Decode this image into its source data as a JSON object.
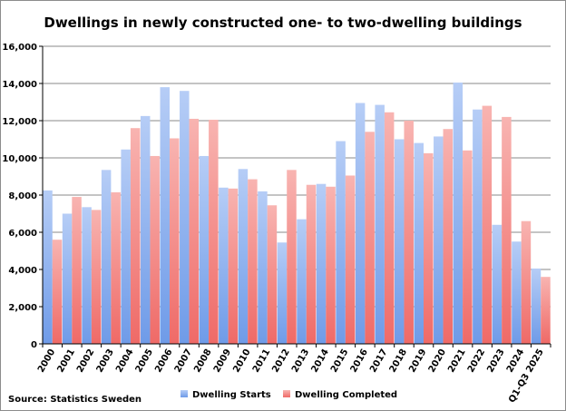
{
  "chart_data": {
    "type": "bar",
    "title": "Dwellings in newly constructed one- to two-dwelling buildings",
    "source": "Source: Statistics Sweden",
    "categories": [
      "2000",
      "2001",
      "2002",
      "2003",
      "2004",
      "2005",
      "2006",
      "2007",
      "2008",
      "2009",
      "2010",
      "2011",
      "2012",
      "2013",
      "2014",
      "2015",
      "2016",
      "2017",
      "2018",
      "2019",
      "2020",
      "2021",
      "2022",
      "2023",
      "2024",
      "Q1-Q3 2025"
    ],
    "series": [
      {
        "name": "Dwelling Starts",
        "color": "#6f9be8",
        "values": [
          8250,
          7000,
          7350,
          9350,
          10450,
          12250,
          13800,
          13600,
          10100,
          8400,
          9400,
          8200,
          5450,
          6700,
          8600,
          10900,
          12950,
          12850,
          11000,
          10800,
          11150,
          14050,
          12600,
          6400,
          5500,
          4050
        ]
      },
      {
        "name": "Dwelling Completed",
        "color": "#ef6a67",
        "values": [
          5600,
          7900,
          7200,
          8150,
          11600,
          10100,
          11050,
          12100,
          12050,
          8350,
          8850,
          7450,
          9350,
          8550,
          8450,
          9050,
          11400,
          12450,
          12000,
          10250,
          11550,
          10400,
          12800,
          12200,
          6600,
          3600
        ]
      }
    ],
    "ylim": [
      0,
      16000
    ],
    "yticks": [
      "0",
      "2,000",
      "4,000",
      "6,000",
      "8,000",
      "10,000",
      "12,000",
      "14,000",
      "16,000"
    ],
    "grid": true,
    "legend": "bottom"
  }
}
